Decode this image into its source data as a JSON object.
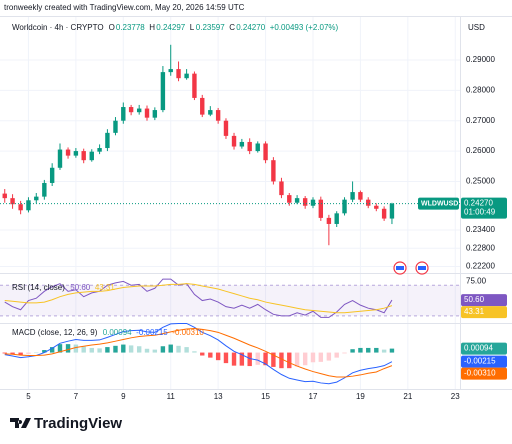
{
  "header": {
    "attribution": "tronweekly created with TradingView.com, May 20, 2026 14:59 UTC",
    "currency": "USD"
  },
  "footer": {
    "brand": "TradingView"
  },
  "chart_data": [
    {
      "type": "candlestick",
      "title": "Worldcoin · 4h · CRYPTO",
      "ohlc_keys": [
        "O",
        "H",
        "L",
        "C"
      ],
      "ohlc_labels": [
        "0.23778",
        "0.24297",
        "0.23597",
        "0.24270"
      ],
      "change_label": "+0.00493 (+2.07%)",
      "symbol": "WLDWUSD",
      "countdown": "01:00:49",
      "colors": {
        "up": "#089981",
        "down": "#f23645"
      },
      "grid": true,
      "x": [
        4,
        4.33,
        4.67,
        5,
        5.33,
        5.67,
        6,
        6.33,
        6.67,
        7,
        7.33,
        7.67,
        8,
        8.33,
        8.67,
        9,
        9.33,
        9.67,
        10,
        10.33,
        10.67,
        11,
        11.33,
        11.67,
        12,
        12.33,
        12.67,
        13,
        13.33,
        13.67,
        14,
        14.33,
        14.67,
        15,
        15.33,
        15.67,
        16,
        16.33,
        16.67,
        17,
        17.33,
        17.67,
        18,
        18.33,
        18.67,
        19,
        19.33,
        19.67,
        20,
        20.33
      ],
      "open": [
        0.246,
        0.2445,
        0.2425,
        0.2405,
        0.2438,
        0.245,
        0.2495,
        0.2545,
        0.2605,
        0.2585,
        0.26,
        0.257,
        0.2598,
        0.261,
        0.266,
        0.27,
        0.2745,
        0.2728,
        0.274,
        0.271,
        0.2735,
        0.286,
        0.287,
        0.284,
        0.2855,
        0.2775,
        0.272,
        0.2735,
        0.27,
        0.265,
        0.2615,
        0.263,
        0.26,
        0.2625,
        0.257,
        0.25,
        0.2455,
        0.243,
        0.2445,
        0.242,
        0.244,
        0.238,
        0.236,
        0.2395,
        0.244,
        0.2465,
        0.244,
        0.242,
        0.241,
        0.23778
      ],
      "high": [
        0.2475,
        0.2458,
        0.2436,
        0.2448,
        0.2462,
        0.2505,
        0.256,
        0.2625,
        0.2612,
        0.261,
        0.2608,
        0.2606,
        0.2622,
        0.2672,
        0.2712,
        0.276,
        0.2752,
        0.2752,
        0.275,
        0.2744,
        0.288,
        0.295,
        0.2895,
        0.287,
        0.2862,
        0.2785,
        0.2748,
        0.2742,
        0.2708,
        0.266,
        0.264,
        0.2642,
        0.2632,
        0.2632,
        0.258,
        0.2512,
        0.2462,
        0.2455,
        0.2452,
        0.2448,
        0.245,
        0.239,
        0.2402,
        0.2448,
        0.25,
        0.247,
        0.2448,
        0.2428,
        0.2418,
        0.24297
      ],
      "low": [
        0.243,
        0.241,
        0.2392,
        0.2398,
        0.2428,
        0.244,
        0.2485,
        0.2538,
        0.2575,
        0.2578,
        0.256,
        0.2565,
        0.259,
        0.26,
        0.2652,
        0.269,
        0.2718,
        0.272,
        0.27,
        0.2702,
        0.2728,
        0.2848,
        0.283,
        0.2835,
        0.2768,
        0.2712,
        0.2715,
        0.269,
        0.264,
        0.2605,
        0.2608,
        0.259,
        0.2595,
        0.256,
        0.249,
        0.2445,
        0.242,
        0.2425,
        0.241,
        0.2412,
        0.237,
        0.229,
        0.235,
        0.2388,
        0.2432,
        0.2432,
        0.2412,
        0.2402,
        0.237,
        0.23597
      ],
      "close": [
        0.2445,
        0.2425,
        0.2405,
        0.2438,
        0.245,
        0.2495,
        0.2545,
        0.2605,
        0.2585,
        0.26,
        0.257,
        0.2598,
        0.261,
        0.266,
        0.27,
        0.2745,
        0.2728,
        0.274,
        0.271,
        0.2735,
        0.286,
        0.287,
        0.284,
        0.2855,
        0.2775,
        0.272,
        0.2735,
        0.27,
        0.265,
        0.2615,
        0.263,
        0.26,
        0.2625,
        0.257,
        0.25,
        0.2455,
        0.243,
        0.2445,
        0.242,
        0.244,
        0.238,
        0.236,
        0.2395,
        0.244,
        0.2465,
        0.244,
        0.242,
        0.241,
        0.23778,
        0.2427
      ],
      "xlim": [
        3.8,
        23.2
      ],
      "xticks": [
        5,
        7,
        9,
        11,
        13,
        15,
        17,
        19,
        21,
        23
      ],
      "ylim": [
        0.2215,
        0.3025
      ],
      "yticks": [
        {
          "value": 0.29,
          "label": "0.29000"
        },
        {
          "value": 0.28,
          "label": "0.28000"
        },
        {
          "value": 0.27,
          "label": "0.27000"
        },
        {
          "value": 0.26,
          "label": "0.26000"
        },
        {
          "value": 0.25,
          "label": "0.25000"
        },
        {
          "value": 0.234,
          "label": "0.23400"
        },
        {
          "value": 0.228,
          "label": "0.22800"
        },
        {
          "value": 0.222,
          "label": "0.22200"
        }
      ]
    },
    {
      "type": "line",
      "title": "RSI (14, close)",
      "band": [
        30,
        70
      ],
      "band_color": "#7e57c2",
      "ylim": [
        22,
        82
      ],
      "yticks": [
        {
          "value": 75,
          "label": "75.00"
        }
      ],
      "series": [
        {
          "color": "#7e57c2",
          "label": "50.60",
          "values": [
            48,
            42,
            38,
            50,
            53,
            62,
            68,
            72,
            62,
            64,
            55,
            60,
            62,
            70,
            73,
            75,
            70,
            71,
            62,
            66,
            78,
            78,
            70,
            72,
            58,
            50,
            52,
            48,
            42,
            40,
            44,
            40,
            45,
            38,
            32,
            30,
            30,
            34,
            31,
            36,
            28,
            28,
            35,
            45,
            50,
            44,
            40,
            38,
            34,
            50.6
          ]
        },
        {
          "color": "#f7c325",
          "label": "43.31",
          "values": [
            50,
            49,
            48,
            47,
            47,
            48,
            51,
            55,
            58,
            60,
            61,
            62,
            62,
            63,
            65,
            67,
            68,
            69,
            69,
            69,
            70,
            71,
            71,
            72,
            71,
            69,
            67,
            65,
            62,
            59,
            56,
            53,
            51,
            48,
            46,
            44,
            42,
            40,
            38,
            37,
            36,
            35,
            34,
            34,
            35,
            36,
            37,
            38,
            40,
            43.31
          ]
        }
      ]
    },
    {
      "type": "macd",
      "title": "MACD (close, 12, 26, 9)",
      "ylim": [
        -0.0084,
        0.0063
      ],
      "histogram": {
        "label": "0.00094",
        "colors": [
          "#26a69a",
          "#b2dfdb",
          "#ffcdd2",
          "#ff5252"
        ],
        "values": [
          -0.0002,
          -0.0004,
          -0.0006,
          -0.0003,
          0.0,
          0.0006,
          0.0013,
          0.002,
          0.002,
          0.0019,
          0.0014,
          0.0011,
          0.001,
          0.0013,
          0.0016,
          0.0019,
          0.0017,
          0.0015,
          0.0009,
          0.0007,
          0.0015,
          0.0019,
          0.0016,
          0.0013,
          0.0003,
          -0.0007,
          -0.0012,
          -0.0018,
          -0.0025,
          -0.0031,
          -0.0031,
          -0.0032,
          -0.0029,
          -0.003,
          -0.0034,
          -0.0037,
          -0.0037,
          -0.0033,
          -0.003,
          -0.0023,
          -0.0022,
          -0.0019,
          -0.0012,
          -0.0002,
          0.0008,
          0.0011,
          0.0011,
          0.0011,
          0.0007,
          0.00094
        ]
      },
      "series": [
        {
          "color": "#2962ff",
          "label": "-0.00215",
          "values": [
            -0.0005,
            -0.0008,
            -0.0012,
            -0.001,
            -0.0007,
            0.0,
            0.001,
            0.0022,
            0.0027,
            0.0031,
            0.0029,
            0.0029,
            0.003,
            0.0036,
            0.0043,
            0.005,
            0.0052,
            0.0053,
            0.0049,
            0.0048,
            0.006,
            0.0068,
            0.0069,
            0.0069,
            0.006,
            0.0048,
            0.004,
            0.003,
            0.0016,
            0.0003,
            -0.0005,
            -0.0014,
            -0.0018,
            -0.0027,
            -0.004,
            -0.0052,
            -0.0061,
            -0.0065,
            -0.0069,
            -0.0068,
            -0.0072,
            -0.0074,
            -0.007,
            -0.006,
            -0.0048,
            -0.0042,
            -0.0038,
            -0.0035,
            -0.0031,
            -0.00215
          ]
        },
        {
          "color": "#ff6d00",
          "label": "-0.00310",
          "values": [
            -0.0003,
            -0.0004,
            -0.0006,
            -0.0007,
            -0.0007,
            -0.0006,
            -0.0003,
            0.0002,
            0.0007,
            0.0012,
            0.0015,
            0.0018,
            0.002,
            0.0023,
            0.0027,
            0.0031,
            0.0035,
            0.0038,
            0.004,
            0.0041,
            0.0045,
            0.0049,
            0.0053,
            0.0056,
            0.0057,
            0.0055,
            0.0052,
            0.0048,
            0.0041,
            0.0034,
            0.0026,
            0.0018,
            0.0011,
            0.0003,
            -0.0006,
            -0.0015,
            -0.0024,
            -0.0032,
            -0.0039,
            -0.0045,
            -0.005,
            -0.0055,
            -0.0058,
            -0.0058,
            -0.0056,
            -0.0053,
            -0.0049,
            -0.0046,
            -0.0038,
            -0.0031
          ]
        }
      ]
    }
  ]
}
